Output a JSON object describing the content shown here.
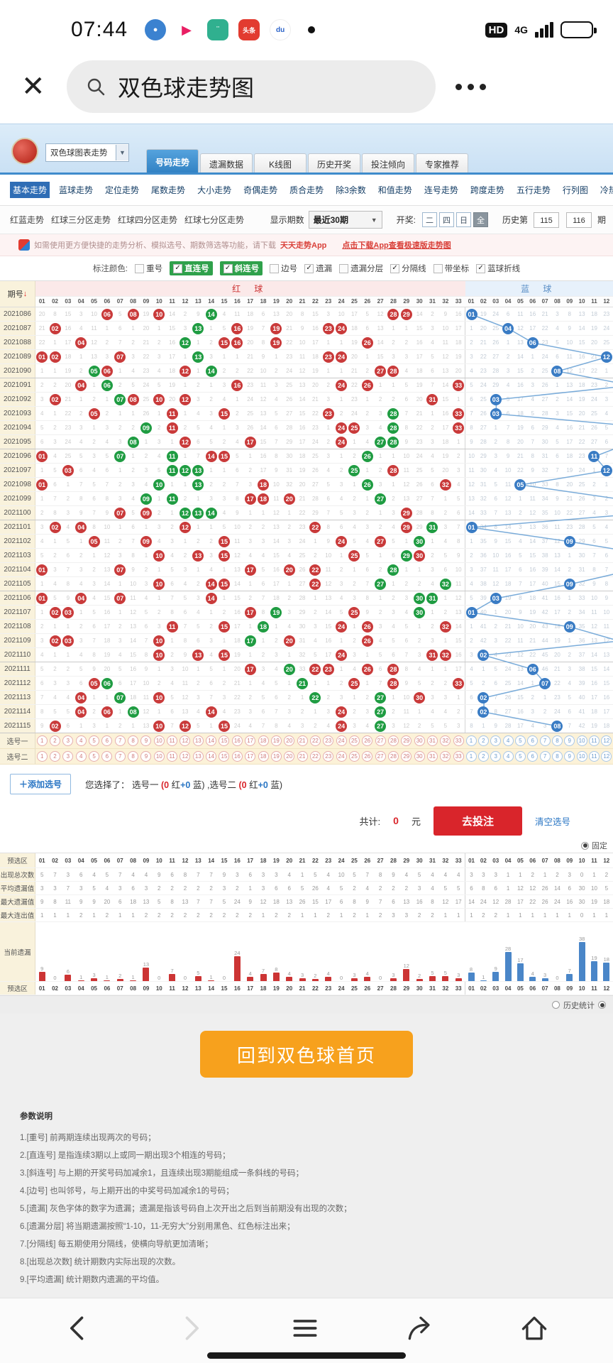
{
  "status_bar": {
    "time": "07:44",
    "hd_badge": "HD",
    "network": "4G"
  },
  "search": {
    "query": "双色球走势图"
  },
  "header": {
    "select_value": "双色球图表走势",
    "tabs": [
      {
        "label": "号码走势",
        "active": true
      },
      {
        "label": "遗漏数据",
        "active": false
      },
      {
        "label": "K线图",
        "active": false
      },
      {
        "label": "历史开奖",
        "active": false
      },
      {
        "label": "投注倾向",
        "active": false
      },
      {
        "label": "专家推荐",
        "active": false
      }
    ]
  },
  "subnav": [
    "基本走势",
    "蓝球走势",
    "定位走势",
    "尾数走势",
    "大小走势",
    "奇偶走势",
    "质合走势",
    "除3余数",
    "和值走势",
    "连号走势",
    "跨度走势",
    "五行走势",
    "行列图",
    "冷热分析",
    "新旧码",
    "重邻孤"
  ],
  "subnav_active": "基本走势",
  "toolbar": {
    "links": [
      "红蓝走势",
      "红球三分区走势",
      "红球四分区走势",
      "红球七分区走势"
    ],
    "period_label": "显示期数",
    "period_value": "最近30期",
    "draw_label": "开奖:",
    "draw_options": [
      "二",
      "四",
      "日",
      "全"
    ],
    "draw_active": "全",
    "history_label": "历史第",
    "history_from": "115",
    "history_to": "116",
    "history_suffix": "期"
  },
  "notice": {
    "text": "如需使用更方便快捷的走势分析、模拟选号、期数筛选等功能，请下载",
    "app_name": "天天走势App",
    "link": "点击下载App查看极速版走势图"
  },
  "marks": {
    "label": "标注颜色:",
    "items": [
      {
        "label": "重号",
        "checked": false,
        "highlight": false
      },
      {
        "label": "直连号",
        "checked": true,
        "highlight": true
      },
      {
        "label": "斜连号",
        "checked": true,
        "highlight": true
      },
      {
        "label": "边号",
        "checked": false,
        "highlight": false
      },
      {
        "label": "遗漏",
        "checked": true,
        "highlight": false
      },
      {
        "label": "遗漏分层",
        "checked": false,
        "highlight": false
      },
      {
        "label": "分隔线",
        "checked": true,
        "highlight": false
      },
      {
        "label": "带坐标",
        "checked": false,
        "highlight": false
      },
      {
        "label": "蓝球折线",
        "checked": true,
        "highlight": false
      }
    ]
  },
  "table": {
    "period_header": "期号",
    "red_header": "红 球",
    "blue_header": "蓝 球",
    "red_count": 33,
    "blue_visible": 12,
    "select_rows": [
      "选号一",
      "选号二"
    ],
    "rows": [
      {
        "p": "2021086",
        "r": [
          [
            6,
            0
          ],
          [
            8,
            0
          ],
          [
            10,
            0
          ],
          [
            14,
            1
          ],
          [
            28,
            0
          ],
          [
            29,
            0
          ]
        ],
        "b": 1
      },
      {
        "p": "2021087",
        "r": [
          [
            2,
            0
          ],
          [
            13,
            1
          ],
          [
            16,
            0
          ],
          [
            19,
            0
          ],
          [
            23,
            0
          ],
          [
            24,
            0
          ]
        ],
        "b": 4
      },
      {
        "p": "2021088",
        "r": [
          [
            4,
            0
          ],
          [
            12,
            1
          ],
          [
            15,
            0
          ],
          [
            16,
            0
          ],
          [
            19,
            0
          ],
          [
            26,
            0
          ]
        ],
        "b": 6
      },
      {
        "p": "2021089",
        "r": [
          [
            1,
            0
          ],
          [
            2,
            0
          ],
          [
            7,
            0
          ],
          [
            13,
            1
          ],
          [
            23,
            0
          ],
          [
            24,
            0
          ]
        ],
        "b": 12
      },
      {
        "p": "2021090",
        "r": [
          [
            5,
            1
          ],
          [
            6,
            0
          ],
          [
            12,
            0
          ],
          [
            14,
            1
          ],
          [
            27,
            0
          ],
          [
            28,
            0
          ]
        ],
        "b": 8
      },
      {
        "p": "2021091",
        "r": [
          [
            4,
            0
          ],
          [
            6,
            1
          ],
          [
            16,
            0
          ],
          [
            24,
            0
          ],
          [
            26,
            0
          ],
          [
            33,
            0
          ]
        ],
        "b": 14
      },
      {
        "p": "2021092",
        "r": [
          [
            2,
            0
          ],
          [
            7,
            1
          ],
          [
            8,
            0
          ],
          [
            10,
            0
          ],
          [
            12,
            0
          ],
          [
            31,
            0
          ]
        ],
        "b": 3
      },
      {
        "p": "2021093",
        "r": [
          [
            5,
            0
          ],
          [
            11,
            0
          ],
          [
            15,
            0
          ],
          [
            23,
            0
          ],
          [
            28,
            1
          ],
          [
            33,
            0
          ]
        ],
        "b": 3
      },
      {
        "p": "2021094",
        "r": [
          [
            9,
            1
          ],
          [
            11,
            0
          ],
          [
            24,
            0
          ],
          [
            25,
            0
          ],
          [
            28,
            1
          ],
          [
            33,
            0
          ]
        ],
        "b": 16
      },
      {
        "p": "2021095",
        "r": [
          [
            8,
            1
          ],
          [
            12,
            0
          ],
          [
            17,
            0
          ],
          [
            24,
            0
          ],
          [
            27,
            1
          ],
          [
            28,
            1
          ]
        ],
        "b": 14
      },
      {
        "p": "2021096",
        "r": [
          [
            1,
            0
          ],
          [
            7,
            1
          ],
          [
            11,
            1
          ],
          [
            14,
            0
          ],
          [
            15,
            0
          ],
          [
            26,
            1
          ]
        ],
        "b": 11
      },
      {
        "p": "2021097",
        "r": [
          [
            3,
            0
          ],
          [
            11,
            1
          ],
          [
            12,
            1
          ],
          [
            13,
            1
          ],
          [
            25,
            1
          ],
          [
            28,
            0
          ]
        ],
        "b": 12
      },
      {
        "p": "2021098",
        "r": [
          [
            1,
            0
          ],
          [
            10,
            1
          ],
          [
            13,
            1
          ],
          [
            18,
            0
          ],
          [
            26,
            1
          ],
          [
            32,
            0
          ]
        ],
        "b": 5
      },
      {
        "p": "2021099",
        "r": [
          [
            9,
            1
          ],
          [
            11,
            1
          ],
          [
            17,
            0
          ],
          [
            18,
            0
          ],
          [
            20,
            0
          ],
          [
            27,
            1
          ]
        ],
        "b": 13
      },
      {
        "p": "2021100",
        "r": [
          [
            7,
            0
          ],
          [
            9,
            0
          ],
          [
            12,
            1
          ],
          [
            13,
            1
          ],
          [
            14,
            1
          ],
          [
            29,
            0
          ]
        ],
        "b": 15
      },
      {
        "p": "2021101",
        "r": [
          [
            2,
            0
          ],
          [
            4,
            0
          ],
          [
            12,
            0
          ],
          [
            22,
            0
          ],
          [
            29,
            0
          ],
          [
            31,
            1
          ]
        ],
        "b": 1
      },
      {
        "p": "2021102",
        "r": [
          [
            5,
            0
          ],
          [
            9,
            0
          ],
          [
            15,
            0
          ],
          [
            24,
            0
          ],
          [
            27,
            0
          ],
          [
            30,
            1
          ]
        ],
        "b": 9
      },
      {
        "p": "2021103",
        "r": [
          [
            10,
            0
          ],
          [
            13,
            0
          ],
          [
            15,
            0
          ],
          [
            25,
            0
          ],
          [
            29,
            1
          ],
          [
            30,
            0
          ]
        ],
        "b": 16
      },
      {
        "p": "2021104",
        "r": [
          [
            1,
            0
          ],
          [
            7,
            0
          ],
          [
            17,
            0
          ],
          [
            20,
            0
          ],
          [
            22,
            0
          ],
          [
            28,
            1
          ]
        ],
        "b": 14
      },
      {
        "p": "2021105",
        "r": [
          [
            10,
            0
          ],
          [
            14,
            0
          ],
          [
            15,
            0
          ],
          [
            22,
            0
          ],
          [
            27,
            1
          ],
          [
            32,
            1
          ]
        ],
        "b": 9
      },
      {
        "p": "2021106",
        "r": [
          [
            1,
            0
          ],
          [
            4,
            0
          ],
          [
            7,
            0
          ],
          [
            14,
            0
          ],
          [
            30,
            1
          ],
          [
            31,
            1
          ]
        ],
        "b": 3
      },
      {
        "p": "2021107",
        "r": [
          [
            2,
            0
          ],
          [
            3,
            0
          ],
          [
            17,
            0
          ],
          [
            19,
            1
          ],
          [
            25,
            0
          ],
          [
            30,
            1
          ]
        ],
        "b": 1
      },
      {
        "p": "2021108",
        "r": [
          [
            11,
            0
          ],
          [
            15,
            0
          ],
          [
            18,
            1
          ],
          [
            24,
            0
          ],
          [
            26,
            0
          ],
          [
            32,
            0
          ]
        ],
        "b": 9
      },
      {
        "p": "2021109",
        "r": [
          [
            2,
            0
          ],
          [
            3,
            0
          ],
          [
            10,
            0
          ],
          [
            17,
            1
          ],
          [
            20,
            0
          ],
          [
            26,
            0
          ]
        ],
        "b": 13
      },
      {
        "p": "2021110",
        "r": [
          [
            10,
            0
          ],
          [
            13,
            0
          ],
          [
            15,
            0
          ],
          [
            24,
            0
          ],
          [
            31,
            0
          ],
          [
            32,
            0
          ]
        ],
        "b": 2
      },
      {
        "p": "2021111",
        "r": [
          [
            17,
            0
          ],
          [
            20,
            1
          ],
          [
            22,
            0
          ],
          [
            23,
            0
          ],
          [
            26,
            0
          ],
          [
            28,
            0
          ]
        ],
        "b": 6
      },
      {
        "p": "2021112",
        "r": [
          [
            5,
            0
          ],
          [
            6,
            1
          ],
          [
            21,
            1
          ],
          [
            25,
            0
          ],
          [
            28,
            0
          ],
          [
            33,
            0
          ]
        ],
        "b": 7
      },
      {
        "p": "2021113",
        "r": [
          [
            4,
            0
          ],
          [
            7,
            1
          ],
          [
            10,
            0
          ],
          [
            22,
            1
          ],
          [
            27,
            1
          ],
          [
            30,
            0
          ]
        ],
        "b": 2
      },
      {
        "p": "2021114",
        "r": [
          [
            4,
            0
          ],
          [
            6,
            0
          ],
          [
            8,
            1
          ],
          [
            14,
            0
          ],
          [
            24,
            0
          ],
          [
            27,
            1
          ]
        ],
        "b": 2
      },
      {
        "p": "2021115",
        "r": [
          [
            2,
            0
          ],
          [
            10,
            0
          ],
          [
            12,
            0
          ],
          [
            15,
            0
          ],
          [
            24,
            0
          ],
          [
            27,
            1
          ]
        ],
        "b": 8
      }
    ]
  },
  "bet": {
    "add_button": "＋添加选号",
    "chosen_prefix": "您选择了：",
    "sel1": "选号一",
    "sel1_detail": "(0 红+0 蓝)",
    "sel2": ",选号二",
    "sel2_detail": "(0 红+0 蓝)",
    "total_label": "共计:",
    "total_value": "0",
    "unit": "元",
    "bet_button": "去投注",
    "clear_button": "清空选号",
    "fixed_label": "固定",
    "history_stat_label": "历史统计"
  },
  "stats": {
    "zone_label": "预选区",
    "row_labels": [
      "出现总次数",
      "平均遗漏值",
      "最大遗漏值",
      "最大连出值",
      "当前遗漏"
    ],
    "appear_red": [
      5,
      7,
      3,
      6,
      4,
      5,
      7,
      4,
      4,
      9,
      6,
      8,
      7,
      7,
      9,
      3,
      6,
      3,
      3,
      4,
      1,
      5,
      4,
      10,
      5,
      7,
      8,
      9,
      4,
      5,
      4,
      4,
      4
    ],
    "appear_blue": [
      3,
      3,
      3,
      1,
      1,
      2,
      1,
      2,
      3,
      0,
      1,
      2
    ],
    "avg_red": [
      3,
      3,
      7,
      3,
      5,
      4,
      3,
      6,
      3,
      2,
      2,
      2,
      2,
      2,
      3,
      2,
      1,
      3,
      6,
      6,
      5,
      26,
      4,
      5,
      2,
      4,
      2,
      2,
      2,
      3,
      4,
      5,
      5
    ],
    "avg_blue": [
      6,
      8,
      6,
      1,
      12,
      12,
      26,
      14,
      6,
      30,
      10,
      5
    ],
    "maxmiss_red": [
      9,
      8,
      11,
      9,
      9,
      20,
      6,
      18,
      13,
      5,
      8,
      13,
      7,
      7,
      5,
      24,
      9,
      12,
      18,
      13,
      26,
      15,
      17,
      6,
      8,
      9,
      7,
      6,
      13,
      16,
      8,
      12,
      17
    ],
    "maxmiss_blue": [
      14,
      24,
      12,
      28,
      17,
      22,
      26,
      24,
      16,
      30,
      19,
      18
    ],
    "maxrun_red": [
      1,
      1,
      1,
      2,
      1,
      2,
      1,
      1,
      2,
      2,
      2,
      2,
      2,
      2,
      2,
      2,
      2,
      1,
      2,
      2,
      1,
      1,
      2,
      1,
      2,
      1,
      2,
      3,
      3,
      2,
      2,
      1,
      1
    ],
    "maxrun_blue": [
      1,
      2,
      2,
      1,
      1,
      1,
      1,
      1,
      1,
      0,
      1,
      1
    ],
    "cur_red": [
      9,
      0,
      6,
      1,
      3,
      1,
      2,
      1,
      13,
      0,
      7,
      0,
      5,
      1,
      0,
      24,
      4,
      7,
      8,
      4,
      3,
      2,
      4,
      0,
      3,
      4,
      0,
      3,
      12,
      2,
      5,
      5,
      3
    ],
    "cur_blue": [
      8,
      1,
      9,
      28,
      17,
      4,
      3,
      0,
      7,
      38,
      19,
      18
    ]
  },
  "footer": {
    "home_button": "回到双色球首页",
    "params_title": "参数说明",
    "params": [
      "1.[重号] 前两期连续出现两次的号码；",
      "2.[直连号] 是指连续3期以上或同一期出现3个相连的号码；",
      "3.[斜连号] 与上期的开奖号码加减余1，且连续出现3期能组成一条斜线的号码；",
      "4.[边号] 也叫邻号，与上期开出的中奖号码加减余1的号码；",
      "5.[遗漏] 灰色字体的数字为遗漏；遗漏是指该号码自上次开出之后到当前期没有出现的次数；",
      "6.[遗漏分层] 将当期遗漏按照“1-10，11-无穷大”分别用黑色、红色标注出来；",
      "7.[分隔线] 每五期使用分隔线，使横向导航更加清晰；",
      "8.[出现总次数] 统计期数内实际出现的次数。",
      "9.[平均遗漏] 统计期数内遗漏的平均值。"
    ]
  },
  "colors": {
    "red_ball": "#c93a3a",
    "green_ball": "#1f9c42",
    "blue_ball": "#3a7cc4",
    "bar_red": "#cc3434",
    "bar_blue": "#4a86c8",
    "accent_orange": "#f7a11d",
    "bet_red": "#d9252b"
  }
}
